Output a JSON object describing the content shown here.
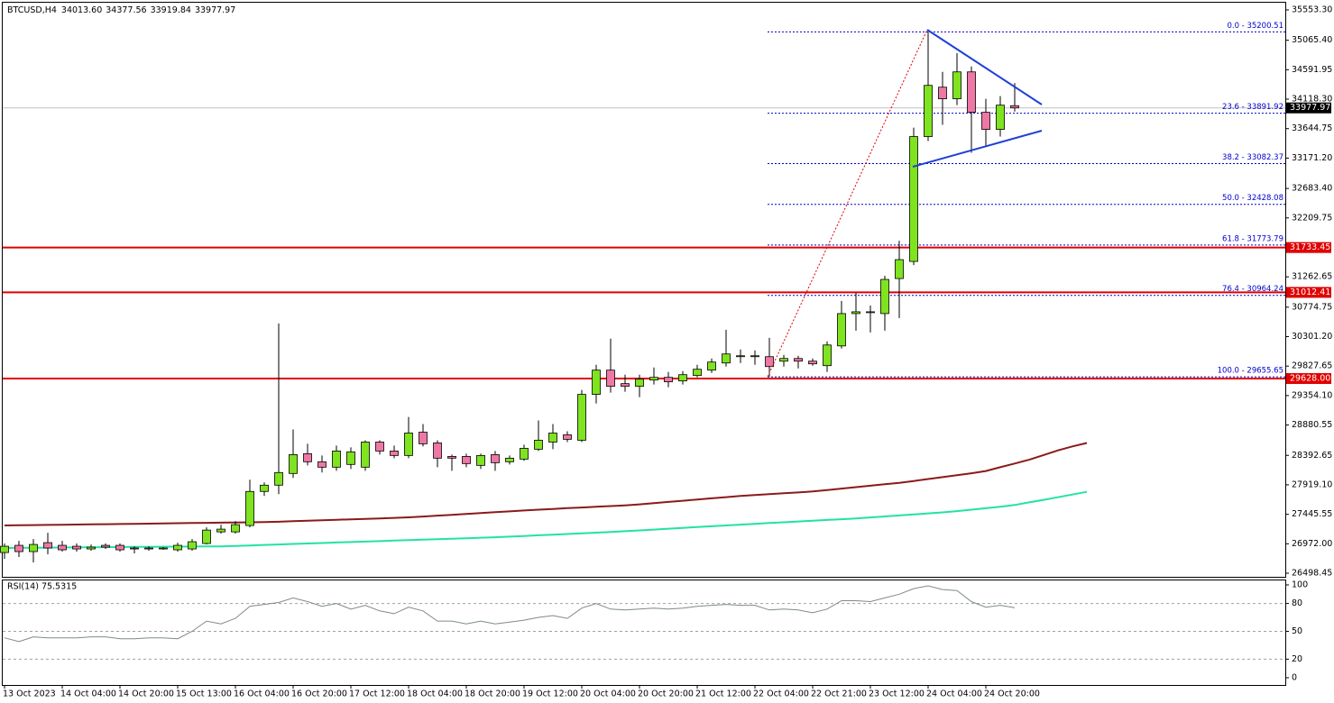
{
  "chart_data": [
    {
      "type": "candlestick",
      "symbol": "BTCUSD,H4",
      "ohlc_text": [
        "34013.60",
        "34377.56",
        "33919.84",
        "33977.97"
      ],
      "categories": [
        "13 Oct 2023",
        null,
        null,
        null,
        "14 Oct 04:00",
        null,
        null,
        null,
        "14 Oct 20:00",
        null,
        null,
        null,
        "15 Oct 13:00",
        null,
        null,
        null,
        "16 Oct 04:00",
        null,
        null,
        null,
        "16 Oct 20:00",
        null,
        null,
        null,
        "17 Oct 12:00",
        null,
        null,
        null,
        "18 Oct 04:00",
        null,
        null,
        null,
        "18 Oct 20:00",
        null,
        null,
        null,
        "19 Oct 12:00",
        null,
        null,
        null,
        "20 Oct 04:00",
        null,
        null,
        null,
        "20 Oct 20:00",
        null,
        null,
        null,
        "21 Oct 12:00",
        null,
        null,
        null,
        "22 Oct 04:00",
        null,
        null,
        null,
        "22 Oct 21:00",
        null,
        null,
        null,
        "23 Oct 12:00",
        null,
        null,
        null,
        "24 Oct 04:00",
        null,
        null,
        null,
        "24 Oct 20:00",
        null,
        null,
        null,
        null,
        null,
        null,
        null
      ],
      "open": [
        26831,
        26947,
        26846,
        26990,
        26947,
        26932,
        26889,
        26947,
        26947,
        26904,
        26904,
        26889,
        26875,
        26889,
        26976,
        27163,
        27163,
        27265,
        27813,
        27914,
        28102,
        28420,
        28290,
        28203,
        28247,
        28203,
        28607,
        28463,
        28391,
        28766,
        28593,
        28376,
        28376,
        28232,
        28405,
        28290,
        28333,
        28492,
        28607,
        28723,
        28636,
        29373,
        29763,
        29546,
        29503,
        29604,
        29647,
        29589,
        29676,
        29763,
        29878,
        29979,
        29979,
        29979,
        29907,
        29950,
        29907,
        29835,
        30152,
        30672,
        30701,
        30672,
        31235,
        31510,
        33517,
        34311,
        34124,
        34557,
        33907,
        33633,
        34013.6,
        null,
        null,
        null,
        null,
        null
      ],
      "high": [
        26976,
        27019,
        27048,
        27149,
        27019,
        26976,
        26961,
        26976,
        26976,
        26932,
        26932,
        26918,
        26990,
        27048,
        27236,
        27279,
        27337,
        28001,
        27958,
        30513,
        28810,
        28579,
        28391,
        28550,
        28521,
        28636,
        28636,
        28550,
        29011,
        28896,
        28636,
        28405,
        28420,
        28420,
        28463,
        28391,
        28564,
        28954,
        28896,
        28781,
        29445,
        29849,
        30268,
        29690,
        29690,
        29806,
        29734,
        29748,
        29849,
        29950,
        30412,
        30095,
        30080,
        30282,
        30008,
        29994,
        29950,
        30225,
        30875,
        31005,
        30802,
        31279,
        31842,
        33661,
        35200.51,
        34557,
        34860,
        34643,
        34124,
        34167,
        34377.56,
        null,
        null,
        null,
        null,
        null
      ],
      "low": [
        26730,
        26759,
        26672,
        26802,
        26846,
        26846,
        26860,
        26889,
        26846,
        26817,
        26860,
        26875,
        26846,
        26860,
        26961,
        27135,
        27135,
        27236,
        27741,
        27770,
        28030,
        28232,
        28117,
        28145,
        28174,
        28145,
        28405,
        28348,
        28348,
        28535,
        28203,
        28145,
        28203,
        28174,
        28145,
        28247,
        28304,
        28463,
        28492,
        28607,
        28607,
        29228,
        29402,
        29416,
        29329,
        29532,
        29488,
        29532,
        29647,
        29719,
        29820,
        29878,
        29849,
        29655.65,
        29820,
        29791,
        29835,
        29734,
        30109,
        30398,
        30369,
        30398,
        30600,
        31452,
        33445,
        33705,
        34022,
        33257,
        33373,
        33517,
        33919.84,
        null,
        null,
        null,
        null,
        null
      ],
      "close": [
        26932,
        26846,
        26961,
        26904,
        26875,
        26889,
        26918,
        26918,
        26875,
        26889,
        26889,
        26904,
        26947,
        27005,
        27192,
        27207,
        27279,
        27813,
        27914,
        28117,
        28405,
        28290,
        28203,
        28463,
        28449,
        28607,
        28463,
        28391,
        28752,
        28579,
        28348,
        28348,
        28261,
        28391,
        28275,
        28348,
        28506,
        28636,
        28752,
        28651,
        29373,
        29763,
        29503,
        29503,
        29618,
        29647,
        29575,
        29690,
        29777,
        29893,
        30023,
        29994,
        29994,
        29820,
        29950,
        29907,
        29864,
        30167,
        30672,
        30701,
        30687,
        31221,
        31539,
        33517,
        34340,
        34124,
        34557,
        33907,
        33633,
        34022,
        33977.97,
        null,
        null,
        null,
        null,
        null
      ],
      "up_color": "#7fe31f",
      "down_color": "#ef77a6",
      "moving_averages": [
        {
          "color": "#8b1a1a",
          "values": [
            27266,
            27269,
            27272,
            27275,
            27278,
            27281,
            27284,
            27287,
            27290,
            27293,
            27296,
            27299,
            27302,
            27305,
            27308,
            27311,
            27314,
            27317,
            27321,
            27326,
            27334,
            27342,
            27349,
            27357,
            27365,
            27372,
            27380,
            27388,
            27397,
            27410,
            27424,
            27438,
            27452,
            27465,
            27479,
            27493,
            27507,
            27520,
            27532,
            27544,
            27555,
            27567,
            27578,
            27590,
            27606,
            27625,
            27644,
            27663,
            27683,
            27702,
            27721,
            27740,
            27754,
            27769,
            27783,
            27797,
            27812,
            27836,
            27859,
            27882,
            27905,
            27928,
            27952,
            27981,
            28012,
            28043,
            28074,
            28105,
            28142,
            28202,
            28262,
            28323,
            28398,
            28473,
            28537,
            28592
          ]
        },
        {
          "color": "#22e3a0",
          "values": [
            26905,
            26906,
            26908,
            26910,
            26912,
            26914,
            26915,
            26917,
            26919,
            26921,
            26922,
            26924,
            26926,
            26928,
            26929,
            26931,
            26937,
            26945,
            26953,
            26961,
            26969,
            26977,
            26984,
            26992,
            27000,
            27007,
            27015,
            27023,
            27030,
            27038,
            27046,
            27053,
            27061,
            27069,
            27077,
            27087,
            27097,
            27108,
            27119,
            27129,
            27140,
            27150,
            27161,
            27174,
            27187,
            27200,
            27214,
            27227,
            27240,
            27253,
            27267,
            27280,
            27292,
            27305,
            27317,
            27330,
            27342,
            27355,
            27367,
            27379,
            27395,
            27411,
            27427,
            27443,
            27460,
            27476,
            27497,
            27520,
            27543,
            27566,
            27595,
            27637,
            27678,
            27720,
            27763,
            27807
          ]
        }
      ],
      "ylim": [
        26440.7,
        35683.3
      ],
      "yticks": [
        {
          "value": 35553.3,
          "label": "35553.30"
        },
        {
          "value": 35065.4,
          "label": "35065.40"
        },
        {
          "value": 34591.95,
          "label": "34591.95"
        },
        {
          "value": 34118.3,
          "label": "34118.30"
        },
        {
          "value": 33644.75,
          "label": "33644.75"
        },
        {
          "value": 33171.2,
          "label": "33171.20"
        },
        {
          "value": 32683.4,
          "label": "32683.40"
        },
        {
          "value": 32209.75,
          "label": "32209.75"
        },
        {
          "value": 31262.65,
          "label": "31262.65"
        },
        {
          "value": 30774.75,
          "label": "30774.75"
        },
        {
          "value": 30301.2,
          "label": "30301.20"
        },
        {
          "value": 29827.65,
          "label": "29827.65"
        },
        {
          "value": 29354.1,
          "label": "29354.10"
        },
        {
          "value": 28880.55,
          "label": "28880.55"
        },
        {
          "value": 28392.65,
          "label": "28392.65"
        },
        {
          "value": 27919.1,
          "label": "27919.10"
        },
        {
          "value": 27445.55,
          "label": "27445.55"
        },
        {
          "value": 26972,
          "label": "26972.00"
        },
        {
          "value": 26498.45,
          "label": "26498.45"
        }
      ],
      "fib_color": "#0000cc",
      "fib_levels": [
        {
          "value": 35200.51,
          "label": "0.0 - 35200.51"
        },
        {
          "value": 33891.92,
          "label": "23.6 - 33891.92"
        },
        {
          "value": 33082.37,
          "label": "38.2 - 33082.37"
        },
        {
          "value": 32428.08,
          "label": "50.0 - 32428.08"
        },
        {
          "value": 31773.79,
          "label": "61.8 - 31773.79"
        },
        {
          "value": 30964.24,
          "label": "76.4 - 30964.24"
        },
        {
          "value": 29655.65,
          "label": "100.0 - 29655.65"
        }
      ],
      "hline_color": "#e00000",
      "hlines": [
        {
          "value": 31733.45,
          "label": "31733.45"
        },
        {
          "value": 31012.41,
          "label": "31012.41"
        },
        {
          "value": 29628,
          "label": "29628.00"
        }
      ],
      "last_price": {
        "value": 33977.97,
        "label": "33977.97"
      }
    },
    {
      "type": "line",
      "title": "RSI(14) 75.5315",
      "color": "#7f8a8a",
      "values": [
        43,
        39,
        44,
        43,
        43,
        43,
        44,
        44,
        42,
        42,
        43,
        43,
        42,
        50,
        61,
        58,
        64,
        77,
        79,
        81,
        86,
        82,
        77,
        80,
        74,
        78,
        72,
        69,
        76,
        72,
        61,
        61,
        58,
        61,
        58,
        60,
        62,
        65,
        67,
        64,
        75,
        80,
        74,
        73,
        74,
        75,
        74,
        75,
        77,
        78,
        79,
        78,
        78,
        73,
        74,
        73,
        70,
        74,
        83,
        83,
        82,
        86,
        90,
        96,
        99,
        95,
        94,
        82,
        76,
        78,
        75.5315,
        null,
        null,
        null,
        null,
        null
      ],
      "ylim": [
        -7.8,
        105.8
      ],
      "yticks": [
        100,
        80,
        50,
        20,
        0
      ],
      "levels": [
        80,
        50,
        20
      ]
    }
  ]
}
